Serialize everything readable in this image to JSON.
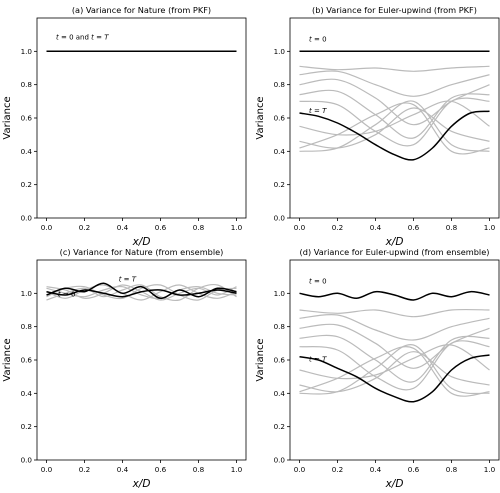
{
  "chart_data": [
    {
      "type": "line",
      "title": "(a) Variance for Nature (from PKF)",
      "xlabel": "x/D",
      "ylabel": "Variance",
      "xlim": [
        -0.05,
        1.05
      ],
      "ylim": [
        0.0,
        1.2
      ],
      "xticks": [
        "0.0",
        "0.2",
        "0.4",
        "0.6",
        "0.8",
        "1.0"
      ],
      "yticks": [
        "0.0",
        "0.2",
        "0.4",
        "0.6",
        "0.8",
        "1.0"
      ],
      "grid": false,
      "annotations": [
        "t = 0 and t = T"
      ],
      "series": [
        {
          "kind": "final",
          "color": "#000000",
          "x": [
            0.0,
            1.0
          ],
          "y": [
            1.0,
            1.0
          ]
        }
      ]
    },
    {
      "type": "line",
      "title": "(b) Variance for Euler-upwind (from PKF)",
      "xlabel": "x/D",
      "ylabel": "Variance",
      "xlim": [
        -0.05,
        1.05
      ],
      "ylim": [
        0.0,
        1.2
      ],
      "xticks": [
        "0.0",
        "0.2",
        "0.4",
        "0.6",
        "0.8",
        "1.0"
      ],
      "yticks": [
        "0.0",
        "0.2",
        "0.4",
        "0.6",
        "0.8",
        "1.0"
      ],
      "grid": false,
      "annotations": [
        "t = 0",
        "t = T"
      ],
      "series": [
        {
          "kind": "initial",
          "color": "#000000",
          "x": [
            0.0,
            1.0
          ],
          "y": [
            1.0,
            1.0
          ]
        },
        {
          "kind": "intermediate",
          "color": "#bbbbbb",
          "x": [
            0.0,
            0.2,
            0.4,
            0.6,
            0.8,
            1.0
          ],
          "y": [
            0.91,
            0.89,
            0.9,
            0.88,
            0.9,
            0.91
          ]
        },
        {
          "kind": "intermediate",
          "color": "#bbbbbb",
          "x": [
            0.0,
            0.2,
            0.4,
            0.6,
            0.8,
            1.0
          ],
          "y": [
            0.86,
            0.88,
            0.8,
            0.73,
            0.8,
            0.86
          ]
        },
        {
          "kind": "intermediate",
          "color": "#bbbbbb",
          "x": [
            0.0,
            0.2,
            0.4,
            0.6,
            0.8,
            1.0
          ],
          "y": [
            0.8,
            0.83,
            0.72,
            0.56,
            0.7,
            0.8
          ]
        },
        {
          "kind": "intermediate",
          "color": "#bbbbbb",
          "x": [
            0.0,
            0.2,
            0.4,
            0.6,
            0.8,
            1.0
          ],
          "y": [
            0.74,
            0.76,
            0.62,
            0.48,
            0.72,
            0.74
          ]
        },
        {
          "kind": "intermediate",
          "color": "#bbbbbb",
          "x": [
            0.0,
            0.2,
            0.4,
            0.6,
            0.8,
            1.0
          ],
          "y": [
            0.7,
            0.68,
            0.52,
            0.44,
            0.7,
            0.7
          ]
        },
        {
          "kind": "intermediate",
          "color": "#bbbbbb",
          "x": [
            0.0,
            0.2,
            0.4,
            0.6,
            0.8,
            1.0
          ],
          "y": [
            0.55,
            0.5,
            0.52,
            0.62,
            0.7,
            0.55
          ]
        },
        {
          "kind": "intermediate",
          "color": "#bbbbbb",
          "x": [
            0.0,
            0.2,
            0.4,
            0.6,
            0.8,
            1.0
          ],
          "y": [
            0.46,
            0.42,
            0.5,
            0.66,
            0.52,
            0.46
          ]
        },
        {
          "kind": "intermediate",
          "color": "#bbbbbb",
          "x": [
            0.0,
            0.2,
            0.4,
            0.6,
            0.8,
            1.0
          ],
          "y": [
            0.4,
            0.42,
            0.56,
            0.7,
            0.44,
            0.4
          ]
        },
        {
          "kind": "intermediate",
          "color": "#bbbbbb",
          "x": [
            0.0,
            0.2,
            0.4,
            0.6,
            0.8,
            1.0
          ],
          "y": [
            0.42,
            0.5,
            0.62,
            0.68,
            0.4,
            0.42
          ]
        },
        {
          "kind": "final",
          "color": "#000000",
          "x": [
            0.0,
            0.1,
            0.2,
            0.3,
            0.4,
            0.5,
            0.6,
            0.7,
            0.8,
            0.9,
            1.0
          ],
          "y": [
            0.63,
            0.61,
            0.57,
            0.51,
            0.44,
            0.38,
            0.35,
            0.42,
            0.55,
            0.63,
            0.64
          ]
        }
      ]
    },
    {
      "type": "line",
      "title": "(c) Variance for Nature (from ensemble)",
      "xlabel": "x/D",
      "ylabel": "Variance",
      "xlim": [
        -0.05,
        1.05
      ],
      "ylim": [
        0.0,
        1.2
      ],
      "xticks": [
        "0.0",
        "0.2",
        "0.4",
        "0.6",
        "0.8",
        "1.0"
      ],
      "yticks": [
        "0.0",
        "0.2",
        "0.4",
        "0.6",
        "0.8",
        "1.0"
      ],
      "grid": false,
      "annotations": [
        "t = 0",
        "t = T"
      ],
      "series": [
        {
          "kind": "intermediate",
          "color": "#bbbbbb",
          "x": [
            0.0,
            0.1,
            0.2,
            0.3,
            0.4,
            0.5,
            0.6,
            0.7,
            0.8,
            0.9,
            1.0
          ],
          "y": [
            1.03,
            1.0,
            0.98,
            1.02,
            1.04,
            0.99,
            0.97,
            1.02,
            1.04,
            1.0,
            0.99
          ]
        },
        {
          "kind": "intermediate",
          "color": "#bbbbbb",
          "x": [
            0.0,
            0.1,
            0.2,
            0.3,
            0.4,
            0.5,
            0.6,
            0.7,
            0.8,
            0.9,
            1.0
          ],
          "y": [
            0.98,
            1.03,
            1.04,
            0.99,
            0.97,
            1.03,
            1.05,
            0.99,
            0.96,
            1.02,
            1.03
          ]
        },
        {
          "kind": "intermediate",
          "color": "#bbbbbb",
          "x": [
            0.0,
            0.1,
            0.2,
            0.3,
            0.4,
            0.5,
            0.6,
            0.7,
            0.8,
            0.9,
            1.0
          ],
          "y": [
            1.01,
            0.97,
            1.02,
            1.05,
            1.0,
            0.96,
            1.01,
            1.05,
            1.0,
            0.97,
            1.01
          ]
        },
        {
          "kind": "intermediate",
          "color": "#bbbbbb",
          "x": [
            0.0,
            0.1,
            0.2,
            0.3,
            0.4,
            0.5,
            0.6,
            0.7,
            0.8,
            0.9,
            1.0
          ],
          "y": [
            0.96,
            1.0,
            1.03,
            0.98,
            1.02,
            1.05,
            0.98,
            0.96,
            1.03,
            1.05,
            0.98
          ]
        },
        {
          "kind": "intermediate",
          "color": "#bbbbbb",
          "x": [
            0.0,
            0.1,
            0.2,
            0.3,
            0.4,
            0.5,
            0.6,
            0.7,
            0.8,
            0.9,
            1.0
          ],
          "y": [
            1.04,
            1.02,
            0.97,
            1.0,
            1.05,
            1.01,
            0.96,
            1.0,
            1.03,
            0.99,
            1.04
          ]
        },
        {
          "kind": "initial",
          "color": "#000000",
          "x": [
            0.0,
            0.1,
            0.2,
            0.3,
            0.4,
            0.5,
            0.6,
            0.7,
            0.8,
            0.9,
            1.0
          ],
          "y": [
            1.01,
            0.99,
            1.02,
            1.0,
            0.98,
            1.01,
            1.02,
            0.99,
            1.0,
            1.02,
            1.0
          ]
        },
        {
          "kind": "final",
          "color": "#000000",
          "x": [
            0.0,
            0.1,
            0.2,
            0.3,
            0.4,
            0.5,
            0.6,
            0.7,
            0.8,
            0.9,
            1.0
          ],
          "y": [
            0.99,
            1.03,
            1.01,
            1.06,
            1.0,
            1.04,
            0.97,
            1.02,
            0.98,
            1.03,
            1.01
          ]
        }
      ]
    },
    {
      "type": "line",
      "title": "(d) Variance for Euler-upwind (from ensemble)",
      "xlabel": "x/D",
      "ylabel": "Variance",
      "xlim": [
        -0.05,
        1.05
      ],
      "ylim": [
        0.0,
        1.2
      ],
      "xticks": [
        "0.0",
        "0.2",
        "0.4",
        "0.6",
        "0.8",
        "1.0"
      ],
      "yticks": [
        "0.0",
        "0.2",
        "0.4",
        "0.6",
        "0.8",
        "1.0"
      ],
      "grid": false,
      "annotations": [
        "t = 0",
        "t = T"
      ],
      "series": [
        {
          "kind": "initial",
          "color": "#000000",
          "x": [
            0.0,
            0.1,
            0.2,
            0.3,
            0.4,
            0.5,
            0.6,
            0.7,
            0.8,
            0.9,
            1.0
          ],
          "y": [
            1.0,
            0.98,
            1.0,
            0.97,
            1.01,
            0.99,
            0.96,
            1.0,
            0.98,
            1.01,
            0.99
          ]
        },
        {
          "kind": "intermediate",
          "color": "#bbbbbb",
          "x": [
            0.0,
            0.2,
            0.4,
            0.6,
            0.8,
            1.0
          ],
          "y": [
            0.9,
            0.88,
            0.9,
            0.86,
            0.9,
            0.9
          ]
        },
        {
          "kind": "intermediate",
          "color": "#bbbbbb",
          "x": [
            0.0,
            0.2,
            0.4,
            0.6,
            0.8,
            1.0
          ],
          "y": [
            0.85,
            0.87,
            0.78,
            0.72,
            0.8,
            0.85
          ]
        },
        {
          "kind": "intermediate",
          "color": "#bbbbbb",
          "x": [
            0.0,
            0.2,
            0.4,
            0.6,
            0.8,
            1.0
          ],
          "y": [
            0.79,
            0.81,
            0.7,
            0.55,
            0.7,
            0.79
          ]
        },
        {
          "kind": "intermediate",
          "color": "#bbbbbb",
          "x": [
            0.0,
            0.2,
            0.4,
            0.6,
            0.8,
            1.0
          ],
          "y": [
            0.73,
            0.74,
            0.6,
            0.47,
            0.72,
            0.73
          ]
        },
        {
          "kind": "intermediate",
          "color": "#bbbbbb",
          "x": [
            0.0,
            0.2,
            0.4,
            0.6,
            0.8,
            1.0
          ],
          "y": [
            0.68,
            0.66,
            0.5,
            0.43,
            0.7,
            0.68
          ]
        },
        {
          "kind": "intermediate",
          "color": "#bbbbbb",
          "x": [
            0.0,
            0.2,
            0.4,
            0.6,
            0.8,
            1.0
          ],
          "y": [
            0.54,
            0.49,
            0.51,
            0.61,
            0.69,
            0.54
          ]
        },
        {
          "kind": "intermediate",
          "color": "#bbbbbb",
          "x": [
            0.0,
            0.2,
            0.4,
            0.6,
            0.8,
            1.0
          ],
          "y": [
            0.45,
            0.41,
            0.49,
            0.65,
            0.5,
            0.45
          ]
        },
        {
          "kind": "intermediate",
          "color": "#bbbbbb",
          "x": [
            0.0,
            0.2,
            0.4,
            0.6,
            0.8,
            1.0
          ],
          "y": [
            0.4,
            0.41,
            0.55,
            0.69,
            0.43,
            0.4
          ]
        },
        {
          "kind": "intermediate",
          "color": "#bbbbbb",
          "x": [
            0.0,
            0.2,
            0.4,
            0.6,
            0.8,
            1.0
          ],
          "y": [
            0.41,
            0.49,
            0.61,
            0.67,
            0.4,
            0.41
          ]
        },
        {
          "kind": "final",
          "color": "#000000",
          "x": [
            0.0,
            0.1,
            0.2,
            0.3,
            0.4,
            0.5,
            0.6,
            0.7,
            0.8,
            0.9,
            1.0
          ],
          "y": [
            0.62,
            0.6,
            0.55,
            0.5,
            0.43,
            0.38,
            0.35,
            0.41,
            0.54,
            0.61,
            0.63
          ]
        }
      ]
    }
  ]
}
